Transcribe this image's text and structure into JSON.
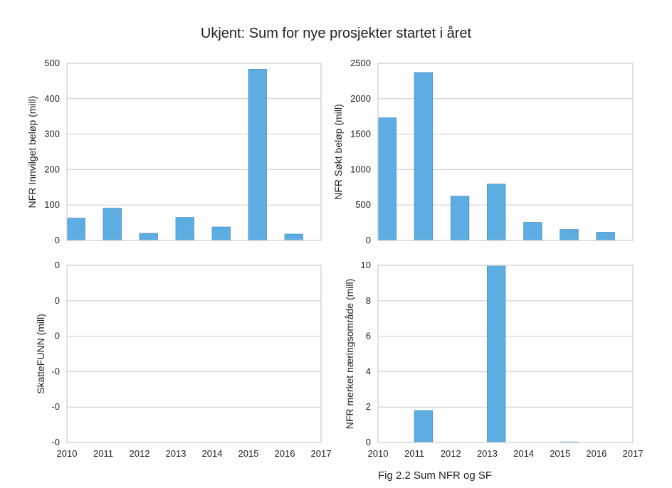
{
  "figure": {
    "title": "Ukjent: Sum for nye prosjekter startet i året",
    "caption": "Fig 2.2 Sum NFR og SF",
    "bar_color": "#5DADE2",
    "bar_edge": "#4a90c2",
    "grid_color": "#cccccc"
  },
  "chart_data": [
    {
      "type": "bar",
      "position": "top-left",
      "ylabel": "NFR Innvilget beløp (mill)",
      "ylim": [
        0,
        500
      ],
      "yticks": [
        0,
        100,
        200,
        300,
        400,
        500
      ],
      "ytick_labels": [
        "0",
        "100",
        "200",
        "300",
        "400",
        "500"
      ],
      "xlim": [
        2010,
        2017
      ],
      "xticks": [
        2010,
        2011,
        2012,
        2013,
        2014,
        2015,
        2016,
        2017
      ],
      "xtick_labels": [],
      "x": [
        2010,
        2011,
        2012,
        2013,
        2014,
        2015,
        2016
      ],
      "values": [
        63,
        91,
        20,
        65,
        38,
        483,
        18
      ],
      "grid": true
    },
    {
      "type": "bar",
      "position": "top-right",
      "ylabel": "NFR Søkt beløp (mill)",
      "ylim": [
        0,
        2500
      ],
      "yticks": [
        0,
        500,
        1000,
        1500,
        2000,
        2500
      ],
      "ytick_labels": [
        "0",
        "500",
        "1000",
        "1500",
        "2000",
        "2500"
      ],
      "xlim": [
        2010,
        2017
      ],
      "xticks": [
        2010,
        2011,
        2012,
        2013,
        2014,
        2015,
        2016,
        2017
      ],
      "xtick_labels": [],
      "x": [
        2010,
        2011,
        2012,
        2013,
        2014,
        2015,
        2016
      ],
      "values": [
        1730,
        2370,
        625,
        795,
        255,
        155,
        115
      ],
      "grid": true
    },
    {
      "type": "bar",
      "position": "bottom-left",
      "ylabel": "SkatteFUNN (mill)",
      "ylim": [
        -0.05,
        0.05
      ],
      "yticks": [
        -0.05,
        -0.03,
        -0.01,
        0.01,
        0.03,
        0.05
      ],
      "ytick_labels": [
        "-0",
        "-0",
        "-0",
        "0",
        "0",
        "0"
      ],
      "xlim": [
        2010,
        2017
      ],
      "xticks": [
        2010,
        2011,
        2012,
        2013,
        2014,
        2015,
        2016,
        2017
      ],
      "xtick_labels": [
        "2010",
        "2011",
        "2012",
        "2013",
        "2014",
        "2015",
        "2016",
        "2017"
      ],
      "x": [],
      "values": [],
      "grid": true
    },
    {
      "type": "bar",
      "position": "bottom-right",
      "ylabel": "NFR merket næringsområde (mill)",
      "ylim": [
        0,
        10
      ],
      "yticks": [
        0,
        2,
        4,
        6,
        8,
        10
      ],
      "ytick_labels": [
        "0",
        "2",
        "4",
        "6",
        "8",
        "10"
      ],
      "xlim": [
        2010,
        2017
      ],
      "xticks": [
        2010,
        2011,
        2012,
        2013,
        2014,
        2015,
        2016,
        2017
      ],
      "xtick_labels": [
        "2010",
        "2011",
        "2012",
        "2013",
        "2014",
        "2015",
        "2016",
        "2017"
      ],
      "x": [
        2011,
        2013,
        2015
      ],
      "values": [
        1.8,
        10,
        0.03
      ],
      "grid": true
    }
  ]
}
